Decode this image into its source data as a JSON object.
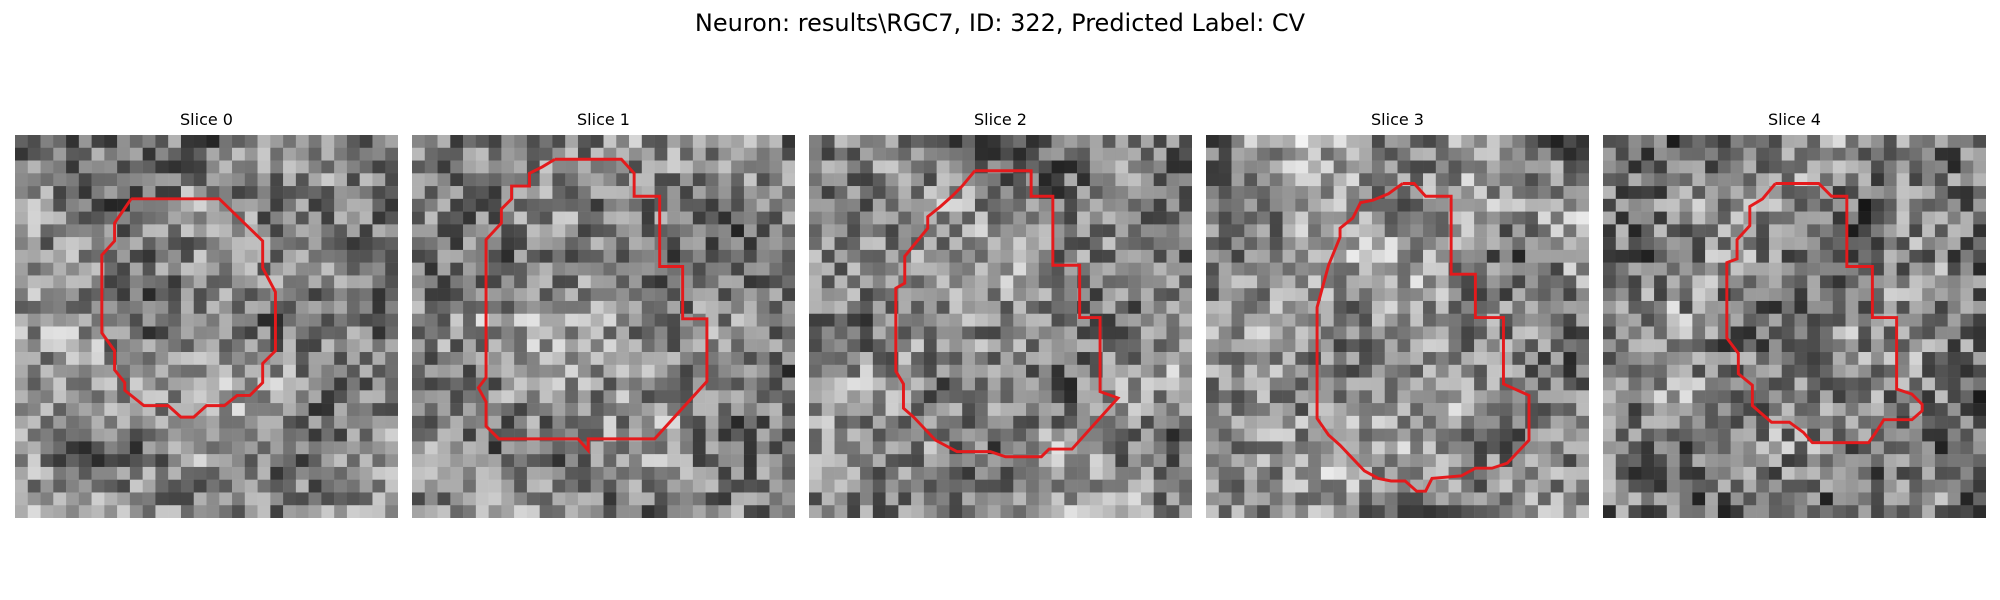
{
  "figure": {
    "title": "Neuron: results\\RGC7, ID: 322, Predicted Label: CV"
  },
  "panels": [
    {
      "title": "Slice 0",
      "seed": 11,
      "contrast": 1.0
    },
    {
      "title": "Slice 1",
      "seed": 23,
      "contrast": 1.0
    },
    {
      "title": "Slice 2",
      "seed": 37,
      "contrast": 1.0
    },
    {
      "title": "Slice 3",
      "seed": 41,
      "contrast": 1.0
    },
    {
      "title": "Slice 4",
      "seed": 53,
      "contrast": 1.1
    }
  ],
  "colors": {
    "contour": "#e41a1c",
    "background": "#ffffff"
  },
  "colormap": "gray"
}
